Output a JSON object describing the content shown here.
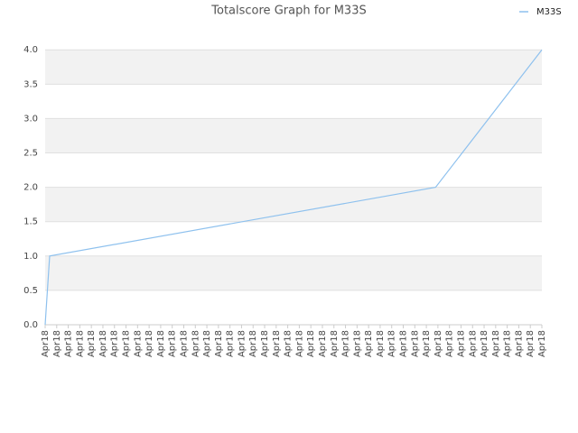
{
  "chart_data": {
    "type": "line",
    "title": "Totalscore Graph for M33S",
    "series": [
      {
        "name": "M33S",
        "color": "#8ec1ee",
        "x": [
          0,
          0.39,
          33.8,
          43
        ],
        "values": [
          0,
          1,
          2,
          4
        ]
      }
    ],
    "xlim": [
      0,
      43
    ],
    "xticks": [
      {
        "value": 0,
        "label": "Apr18"
      },
      {
        "value": 1,
        "label": "Apr18"
      },
      {
        "value": 2,
        "label": "Apr18"
      },
      {
        "value": 3,
        "label": "Apr18"
      },
      {
        "value": 4,
        "label": "Apr18"
      },
      {
        "value": 5,
        "label": "Apr18"
      },
      {
        "value": 6,
        "label": "Apr18"
      },
      {
        "value": 7,
        "label": "Apr18"
      },
      {
        "value": 8,
        "label": "Apr18"
      },
      {
        "value": 9,
        "label": "Apr18"
      },
      {
        "value": 10,
        "label": "Apr18"
      },
      {
        "value": 11,
        "label": "Apr18"
      },
      {
        "value": 12,
        "label": "Apr18"
      },
      {
        "value": 13,
        "label": "Apr18"
      },
      {
        "value": 14,
        "label": "Apr18"
      },
      {
        "value": 15,
        "label": "Apr18"
      },
      {
        "value": 16,
        "label": "Apr18"
      },
      {
        "value": 17,
        "label": "Apr18"
      },
      {
        "value": 18,
        "label": "Apr18"
      },
      {
        "value": 19,
        "label": "Apr18"
      },
      {
        "value": 20,
        "label": "Apr18"
      },
      {
        "value": 21,
        "label": "Apr18"
      },
      {
        "value": 22,
        "label": "Apr18"
      },
      {
        "value": 23,
        "label": "Apr18"
      },
      {
        "value": 24,
        "label": "Apr18"
      },
      {
        "value": 25,
        "label": "Apr18"
      },
      {
        "value": 26,
        "label": "Apr18"
      },
      {
        "value": 27,
        "label": "Apr18"
      },
      {
        "value": 28,
        "label": "Apr18"
      },
      {
        "value": 29,
        "label": "Apr18"
      },
      {
        "value": 30,
        "label": "Apr18"
      },
      {
        "value": 31,
        "label": "Apr18"
      },
      {
        "value": 32,
        "label": "Apr18"
      },
      {
        "value": 33,
        "label": "Apr18"
      },
      {
        "value": 34,
        "label": "Apr18"
      },
      {
        "value": 35,
        "label": "Apr18"
      },
      {
        "value": 36,
        "label": "Apr18"
      },
      {
        "value": 37,
        "label": "Apr18"
      },
      {
        "value": 38,
        "label": "Apr18"
      },
      {
        "value": 39,
        "label": "Apr18"
      },
      {
        "value": 40,
        "label": "Apr18"
      },
      {
        "value": 41,
        "label": "Apr18"
      },
      {
        "value": 42,
        "label": "Apr18"
      },
      {
        "value": 43,
        "label": "Apr18"
      }
    ],
    "ylim": [
      0,
      4.2
    ],
    "yticks": [
      {
        "value": 0,
        "label": "0.0"
      },
      {
        "value": 0.5,
        "label": "0.5"
      },
      {
        "value": 1,
        "label": "1.0"
      },
      {
        "value": 1.5,
        "label": "1.5"
      },
      {
        "value": 2,
        "label": "2.0"
      },
      {
        "value": 2.5,
        "label": "2.5"
      },
      {
        "value": 3,
        "label": "3.0"
      },
      {
        "value": 3.5,
        "label": "3.5"
      },
      {
        "value": 4,
        "label": "4.0"
      }
    ],
    "grid": true,
    "legend": "top-right"
  }
}
